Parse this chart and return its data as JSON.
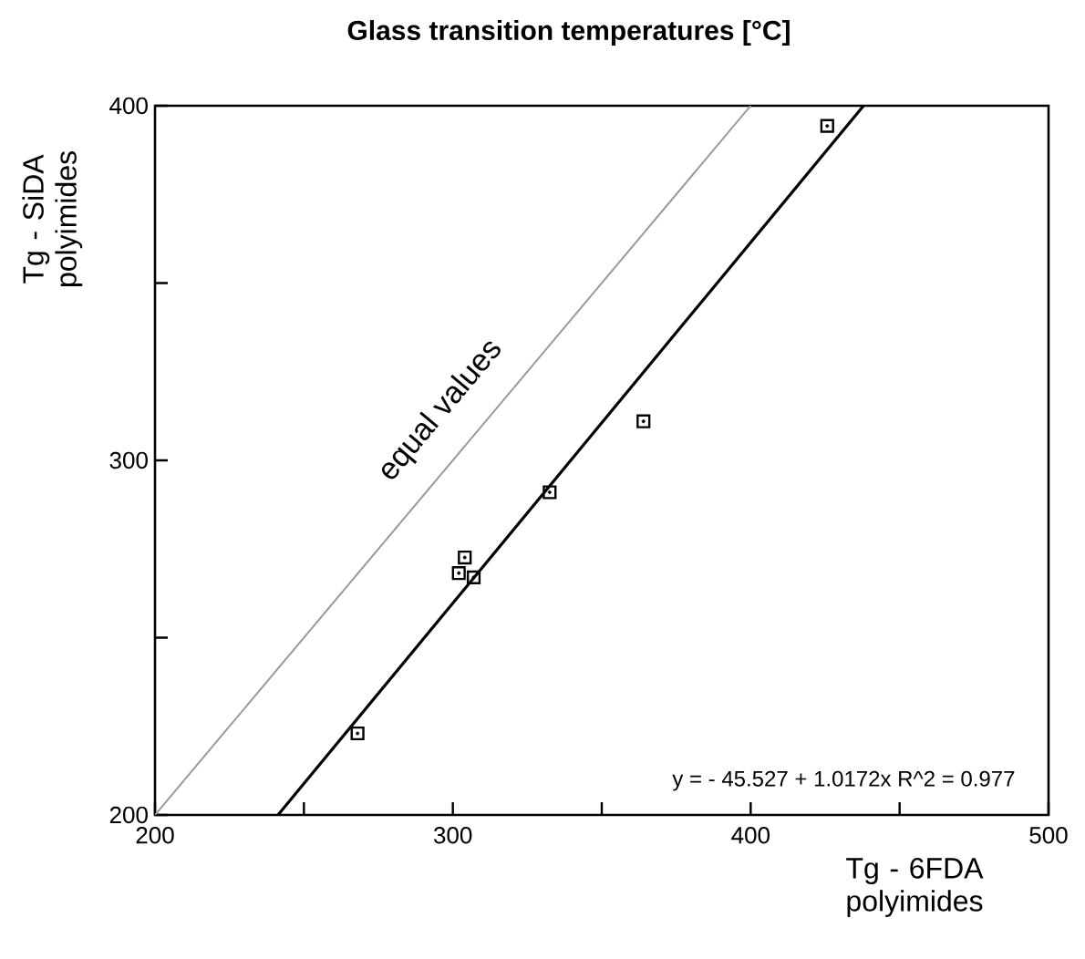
{
  "chart_data": {
    "type": "scatter",
    "title": "Glass transition temperatures [°C]",
    "xlabel": "Tg - 6FDA polyimides",
    "ylabel": "Tg - SiDA polyimides",
    "xlim": [
      200,
      500
    ],
    "ylim": [
      200,
      400
    ],
    "xticks": [
      200,
      {
        "value": 250,
        "label": null
      },
      300,
      {
        "value": 350,
        "label": null
      },
      400,
      {
        "value": 450,
        "label": null
      },
      500
    ],
    "yticks": [
      200,
      {
        "value": 250,
        "label": null
      },
      300,
      {
        "value": 350,
        "label": null
      },
      400
    ],
    "grid": false,
    "series": [
      {
        "marker": "square",
        "color": "#000000",
        "x": [
          268,
          304,
          302,
          307,
          332.5,
          364,
          425.7
        ],
        "values": [
          223,
          272.6,
          268.2,
          267,
          291,
          311,
          394.3
        ]
      },
      {
        "type": "line",
        "marker": "none",
        "line_style": "solid",
        "color": "#000000",
        "x": [
          241.3,
          437.9
        ],
        "values": [
          200,
          400
        ]
      },
      {
        "type": "line",
        "marker": "none",
        "line_style": "solid",
        "color": "#999999",
        "x": [
          200,
          400
        ],
        "values": [
          200,
          400
        ]
      }
    ],
    "annotations": [
      "equal values",
      "y =  - 45.527 + 1.0172x   R^2 = 0.977"
    ]
  }
}
